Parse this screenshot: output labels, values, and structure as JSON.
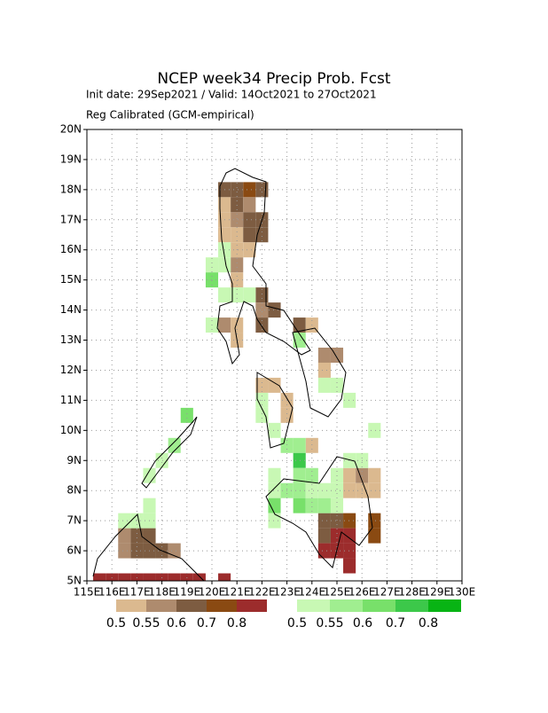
{
  "chart_data": {
    "type": "gridmap",
    "title": "NCEP week34 Precip Prob. Fcst",
    "subtitle": "Init date: 29Sep2021 / Valid: 14Oct2021 to 27Oct2021",
    "note": "Reg Calibrated (GCM-empirical)",
    "xlim": [
      115,
      130
    ],
    "ylim": [
      5,
      20
    ],
    "grid": true,
    "cell_size": 0.5,
    "xticks": [
      {
        "value": 115,
        "label": "115E"
      },
      {
        "value": 116,
        "label": "116E"
      },
      {
        "value": 117,
        "label": "117E"
      },
      {
        "value": 118,
        "label": "118E"
      },
      {
        "value": 119,
        "label": "119E"
      },
      {
        "value": 120,
        "label": "120E"
      },
      {
        "value": 121,
        "label": "121E"
      },
      {
        "value": 122,
        "label": "122E"
      },
      {
        "value": 123,
        "label": "123E"
      },
      {
        "value": 124,
        "label": "124E"
      },
      {
        "value": 125,
        "label": "125E"
      },
      {
        "value": 126,
        "label": "126E"
      },
      {
        "value": 127,
        "label": "127E"
      },
      {
        "value": 128,
        "label": "128E"
      },
      {
        "value": 129,
        "label": "129E"
      },
      {
        "value": 130,
        "label": "130E"
      }
    ],
    "yticks": [
      {
        "value": 5,
        "label": "5N"
      },
      {
        "value": 6,
        "label": "6N"
      },
      {
        "value": 7,
        "label": "7N"
      },
      {
        "value": 8,
        "label": "8N"
      },
      {
        "value": 9,
        "label": "9N"
      },
      {
        "value": 10,
        "label": "10N"
      },
      {
        "value": 11,
        "label": "11N"
      },
      {
        "value": 12,
        "label": "12N"
      },
      {
        "value": 13,
        "label": "13N"
      },
      {
        "value": 14,
        "label": "14N"
      },
      {
        "value": 15,
        "label": "15N"
      },
      {
        "value": 16,
        "label": "16N"
      },
      {
        "value": 17,
        "label": "17N"
      },
      {
        "value": 18,
        "label": "18N"
      },
      {
        "value": 19,
        "label": "19N"
      },
      {
        "value": 20,
        "label": "20N"
      }
    ],
    "series": [
      {
        "levels": [
          0.5,
          0.55,
          0.6,
          0.7,
          0.8
        ],
        "colors": [
          "#dbb98f",
          "#ae8b6e",
          "#7d5c41",
          "#8a4a12",
          "#9c2c2c"
        ],
        "cells": [
          [
            120.25,
            17.75,
            0.62
          ],
          [
            120.75,
            17.75,
            0.62
          ],
          [
            121.25,
            17.75,
            0.75
          ],
          [
            121.75,
            17.75,
            0.62
          ],
          [
            120.25,
            17.25,
            0.52
          ],
          [
            120.75,
            17.25,
            0.62
          ],
          [
            121.25,
            17.25,
            0.57
          ],
          [
            120.25,
            16.75,
            0.52
          ],
          [
            120.75,
            16.75,
            0.57
          ],
          [
            121.25,
            16.75,
            0.62
          ],
          [
            121.75,
            16.75,
            0.62
          ],
          [
            120.25,
            16.25,
            0.52
          ],
          [
            120.75,
            16.25,
            0.52
          ],
          [
            121.25,
            16.25,
            0.62
          ],
          [
            121.75,
            16.25,
            0.62
          ],
          [
            120.75,
            15.75,
            0.52
          ],
          [
            121.25,
            15.75,
            0.52
          ],
          [
            120.75,
            15.25,
            0.57
          ],
          [
            120.75,
            14.75,
            0.52
          ],
          [
            121.75,
            14.25,
            0.62
          ],
          [
            121.75,
            13.75,
            0.57
          ],
          [
            122.25,
            13.75,
            0.62
          ],
          [
            120.25,
            13.25,
            0.57
          ],
          [
            120.75,
            13.25,
            0.52
          ],
          [
            120.75,
            12.75,
            0.52
          ],
          [
            121.75,
            13.25,
            0.62
          ],
          [
            123.25,
            13.25,
            0.62
          ],
          [
            123.75,
            13.25,
            0.52
          ],
          [
            124.25,
            12.25,
            0.57
          ],
          [
            124.75,
            12.25,
            0.57
          ],
          [
            124.25,
            11.75,
            0.52
          ],
          [
            121.75,
            11.25,
            0.52
          ],
          [
            122.25,
            11.25,
            0.52
          ],
          [
            122.75,
            10.75,
            0.52
          ],
          [
            122.75,
            10.25,
            0.52
          ],
          [
            123.75,
            9.25,
            0.52
          ],
          [
            125.25,
            8.25,
            0.52
          ],
          [
            125.75,
            8.25,
            0.57
          ],
          [
            126.25,
            8.25,
            0.52
          ],
          [
            125.25,
            7.75,
            0.52
          ],
          [
            125.75,
            7.75,
            0.52
          ],
          [
            126.25,
            7.75,
            0.52
          ],
          [
            124.25,
            6.75,
            0.62
          ],
          [
            124.75,
            6.75,
            0.62
          ],
          [
            125.25,
            6.75,
            0.75
          ],
          [
            126.25,
            6.75,
            0.75
          ],
          [
            126.25,
            6.25,
            0.72
          ],
          [
            124.25,
            6.25,
            0.62
          ],
          [
            124.75,
            6.25,
            0.82
          ],
          [
            125.25,
            6.25,
            0.82
          ],
          [
            124.25,
            5.75,
            0.82
          ],
          [
            124.75,
            5.75,
            0.82
          ],
          [
            125.25,
            5.75,
            0.82
          ],
          [
            125.25,
            5.25,
            0.82
          ],
          [
            116.25,
            6.25,
            0.57
          ],
          [
            116.25,
            5.75,
            0.57
          ],
          [
            116.75,
            6.25,
            0.62
          ],
          [
            116.75,
            5.75,
            0.62
          ],
          [
            117.25,
            6.25,
            0.62
          ],
          [
            117.25,
            5.75,
            0.62
          ],
          [
            117.75,
            5.75,
            0.62
          ],
          [
            118.25,
            5.75,
            0.57
          ],
          [
            115.25,
            4.75,
            0.82
          ],
          [
            115.75,
            4.75,
            0.82
          ],
          [
            116.25,
            4.75,
            0.82
          ],
          [
            116.75,
            4.75,
            0.82
          ],
          [
            117.25,
            4.75,
            0.82
          ],
          [
            117.75,
            4.75,
            0.82
          ],
          [
            118.25,
            4.75,
            0.82
          ],
          [
            118.75,
            4.75,
            0.82
          ],
          [
            119.25,
            4.75,
            0.82
          ],
          [
            120.25,
            4.75,
            0.82
          ]
        ]
      },
      {
        "levels": [
          0.5,
          0.55,
          0.6,
          0.7,
          0.8
        ],
        "colors": [
          "#c8f8b4",
          "#a0ee90",
          "#78e06a",
          "#3cc84a",
          "#08b414"
        ],
        "cells": [
          [
            120.25,
            15.75,
            0.52
          ],
          [
            119.75,
            15.25,
            0.52
          ],
          [
            120.25,
            15.25,
            0.52
          ],
          [
            119.75,
            14.75,
            0.62
          ],
          [
            120.25,
            14.25,
            0.52
          ],
          [
            120.75,
            14.25,
            0.52
          ],
          [
            119.75,
            13.25,
            0.52
          ],
          [
            121.25,
            14.25,
            0.52
          ],
          [
            123.25,
            12.75,
            0.57
          ],
          [
            124.25,
            11.25,
            0.52
          ],
          [
            124.75,
            11.25,
            0.52
          ],
          [
            125.25,
            10.75,
            0.52
          ],
          [
            121.75,
            10.75,
            0.52
          ],
          [
            121.75,
            10.25,
            0.52
          ],
          [
            122.25,
            9.75,
            0.52
          ],
          [
            122.75,
            9.25,
            0.57
          ],
          [
            123.25,
            9.25,
            0.57
          ],
          [
            123.25,
            8.75,
            0.72
          ],
          [
            122.25,
            8.25,
            0.52
          ],
          [
            123.25,
            8.25,
            0.57
          ],
          [
            123.75,
            8.25,
            0.57
          ],
          [
            124.75,
            8.25,
            0.52
          ],
          [
            125.25,
            8.75,
            0.52
          ],
          [
            125.75,
            8.75,
            0.52
          ],
          [
            126.25,
            9.75,
            0.52
          ],
          [
            122.25,
            7.75,
            0.52
          ],
          [
            122.75,
            7.75,
            0.57
          ],
          [
            123.25,
            7.75,
            0.57
          ],
          [
            123.75,
            7.75,
            0.52
          ],
          [
            124.25,
            7.75,
            0.52
          ],
          [
            124.75,
            7.75,
            0.52
          ],
          [
            122.25,
            7.25,
            0.62
          ],
          [
            122.25,
            6.75,
            0.52
          ],
          [
            123.25,
            7.25,
            0.62
          ],
          [
            123.75,
            7.25,
            0.57
          ],
          [
            124.25,
            7.25,
            0.57
          ],
          [
            124.75,
            7.25,
            0.52
          ],
          [
            118.75,
            10.25,
            0.62
          ],
          [
            118.25,
            9.25,
            0.57
          ],
          [
            117.75,
            8.75,
            0.52
          ],
          [
            117.25,
            8.25,
            0.52
          ],
          [
            116.75,
            6.75,
            0.52
          ],
          [
            117.25,
            6.75,
            0.52
          ],
          [
            116.25,
            6.75,
            0.52
          ],
          [
            117.25,
            7.25,
            0.52
          ]
        ]
      }
    ]
  }
}
